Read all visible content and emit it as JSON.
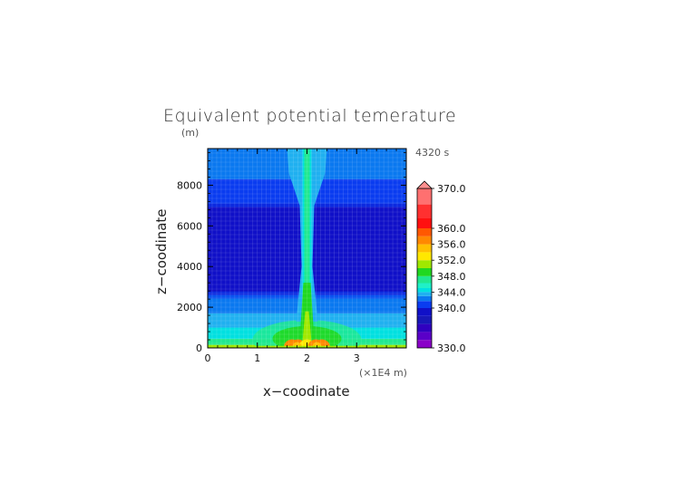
{
  "chart_data": {
    "type": "heatmap",
    "title": "Equivalent potential temerature",
    "time_label": "4320 s",
    "xlabel": "x−coodinate",
    "ylabel": "z−coodinate",
    "y_unit": "(m)",
    "x_unit": "(×1E4 m)",
    "xlim": [
      0,
      4.0
    ],
    "ylim": [
      0,
      9800
    ],
    "xticks": [
      {
        "value": 0,
        "label": "0"
      },
      {
        "value": 1,
        "label": "1"
      },
      {
        "value": 2,
        "label": "2"
      },
      {
        "value": 3,
        "label": "3"
      }
    ],
    "yticks": [
      {
        "value": 0,
        "label": "0"
      },
      {
        "value": 2000,
        "label": "2000"
      },
      {
        "value": 4000,
        "label": "4000"
      },
      {
        "value": 6000,
        "label": "6000"
      },
      {
        "value": 8000,
        "label": "8000"
      }
    ],
    "plume_center_x": 2.0,
    "field_bands": [
      {
        "z_min": 0,
        "z_max": 150,
        "value": 351
      },
      {
        "z_min": 150,
        "z_max": 450,
        "value": 347
      },
      {
        "z_min": 450,
        "z_max": 1000,
        "value": 345
      },
      {
        "z_min": 1000,
        "z_max": 1700,
        "value": 344
      },
      {
        "z_min": 1700,
        "z_max": 2600,
        "value": 343
      },
      {
        "z_min": 2600,
        "z_max": 7100,
        "value": 340
      },
      {
        "z_min": 7100,
        "z_max": 8300,
        "value": 341
      },
      {
        "z_min": 8300,
        "z_max": 9800,
        "value": 342
      }
    ],
    "colorbar": {
      "min": 330,
      "max": 370,
      "tick_labels": [
        "370.0",
        "360.0",
        "356.0",
        "352.0",
        "348.0",
        "344.0",
        "340.0",
        "330.0"
      ],
      "levels": [
        {
          "value": 331,
          "color": "#8a00c8"
        },
        {
          "value": 333,
          "color": "#5a00c8"
        },
        {
          "value": 335,
          "color": "#3000c0"
        },
        {
          "value": 337,
          "color": "#1818b8"
        },
        {
          "value": 339,
          "color": "#1010c8"
        },
        {
          "value": 341,
          "color": "#0a3cf0"
        },
        {
          "value": 342.5,
          "color": "#0a78f0"
        },
        {
          "value": 343.5,
          "color": "#20b0f0"
        },
        {
          "value": 344.5,
          "color": "#00e0e0"
        },
        {
          "value": 345.5,
          "color": "#20f0c8"
        },
        {
          "value": 347,
          "color": "#20e890"
        },
        {
          "value": 349,
          "color": "#20d820"
        },
        {
          "value": 351,
          "color": "#a0e800"
        },
        {
          "value": 353,
          "color": "#ffe800"
        },
        {
          "value": 355,
          "color": "#ffc000"
        },
        {
          "value": 357,
          "color": "#ff8800"
        },
        {
          "value": 359,
          "color": "#ff5800"
        },
        {
          "value": 361,
          "color": "#ff1010"
        },
        {
          "value": 364,
          "color": "#ff3030"
        },
        {
          "value": 368,
          "color": "#ff7070"
        }
      ]
    }
  }
}
